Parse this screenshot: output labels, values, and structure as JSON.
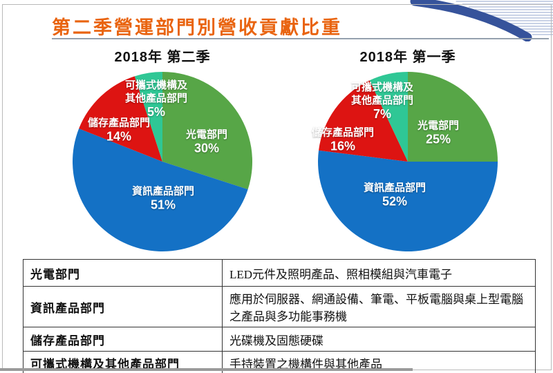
{
  "slide": {
    "title": "第二季營運部門別營收貢獻比重"
  },
  "chart_data": [
    {
      "type": "pie",
      "title": "2018年 第二季",
      "segments": [
        "光電部門",
        "資訊產品部門",
        "儲存產品部門",
        "可攜式機構及其他產品部門"
      ],
      "labels": [
        [
          "光電部門"
        ],
        [
          "資訊產品部門"
        ],
        [
          "儲存產品部門"
        ],
        [
          "可攜式機構及",
          "其他產品部門"
        ]
      ],
      "values": [
        30,
        51,
        14,
        5
      ],
      "pct_labels": [
        "30%",
        "51%",
        "14%",
        "5%"
      ],
      "colors": [
        "#57a647",
        "#1471c5",
        "#dd1412",
        "#2fc795"
      ],
      "start_angle": "12-oclock",
      "direction": "clockwise",
      "legend": "none"
    },
    {
      "type": "pie",
      "title": "2018年 第一季",
      "segments": [
        "光電部門",
        "資訊產品部門",
        "儲存產品部門",
        "可攜式機構及其他產品部門"
      ],
      "labels": [
        [
          "光電部門"
        ],
        [
          "資訊產品部門"
        ],
        [
          "儲存產品部門"
        ],
        [
          "可攜式機構及",
          "其他產品部門"
        ]
      ],
      "values": [
        25,
        52,
        16,
        7
      ],
      "pct_labels": [
        "25%",
        "52%",
        "16%",
        "7%"
      ],
      "colors": [
        "#57a647",
        "#1471c5",
        "#dd1412",
        "#2fc795"
      ],
      "start_angle": "12-oclock",
      "direction": "clockwise",
      "legend": "none"
    }
  ],
  "table": {
    "rows": [
      {
        "name": "光電部門",
        "desc": "LED元件及照明產品、照相模組與汽車電子"
      },
      {
        "name": "資訊產品部門",
        "desc": "應用於伺服器、網通設備、筆電、平板電腦與桌上型電腦之產品與多功能事務機"
      },
      {
        "name": "儲存產品部門",
        "desc": "光碟機及固態硬碟"
      },
      {
        "name": "可攜式機構及其他產品部門",
        "desc": "手持裝置之機構件與其他產品"
      }
    ]
  },
  "colors": {
    "title_orange": "#e96410",
    "pie_green": "#57a647",
    "pie_blue": "#1471c5",
    "pie_red": "#dd1412",
    "pie_teal": "#2fc795",
    "decoration_blue": "#36539b",
    "decoration_stripe": "#b7c3de"
  }
}
